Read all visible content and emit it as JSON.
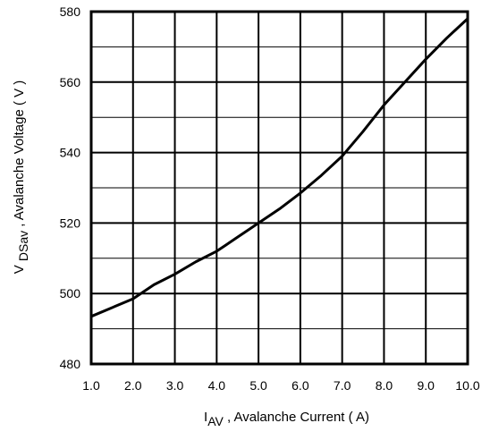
{
  "chart_data": {
    "type": "line",
    "x": [
      1.0,
      1.5,
      2.0,
      2.5,
      3.0,
      3.5,
      4.0,
      4.5,
      5.0,
      5.5,
      6.0,
      6.5,
      7.0,
      7.5,
      8.0,
      8.5,
      9.0,
      9.5,
      10.0
    ],
    "series": [
      {
        "values": [
          493.5,
          496,
          498.5,
          502.5,
          505.5,
          509,
          512,
          516,
          520,
          524,
          528.5,
          533.5,
          539,
          546,
          553.5,
          560,
          566.5,
          572.5,
          578
        ]
      }
    ],
    "xlim": [
      1.0,
      10.0
    ],
    "ylim": [
      480,
      580
    ],
    "x_ticks": [
      "1.0",
      "2.0",
      "3.0",
      "4.0",
      "5.0",
      "6.0",
      "7.0",
      "8.0",
      "9.0",
      "10.0"
    ],
    "y_ticks": [
      "480",
      "500",
      "520",
      "540",
      "560",
      "580"
    ],
    "xlabel": {
      "main": "I",
      "sub": "AV",
      "rest": " , Avalanche Current ( A)"
    },
    "ylabel": {
      "main": "V ",
      "sub": "DSav",
      "rest": " , Avalanche Voltage ( V )"
    },
    "grid": true,
    "line_color": "#000000"
  }
}
